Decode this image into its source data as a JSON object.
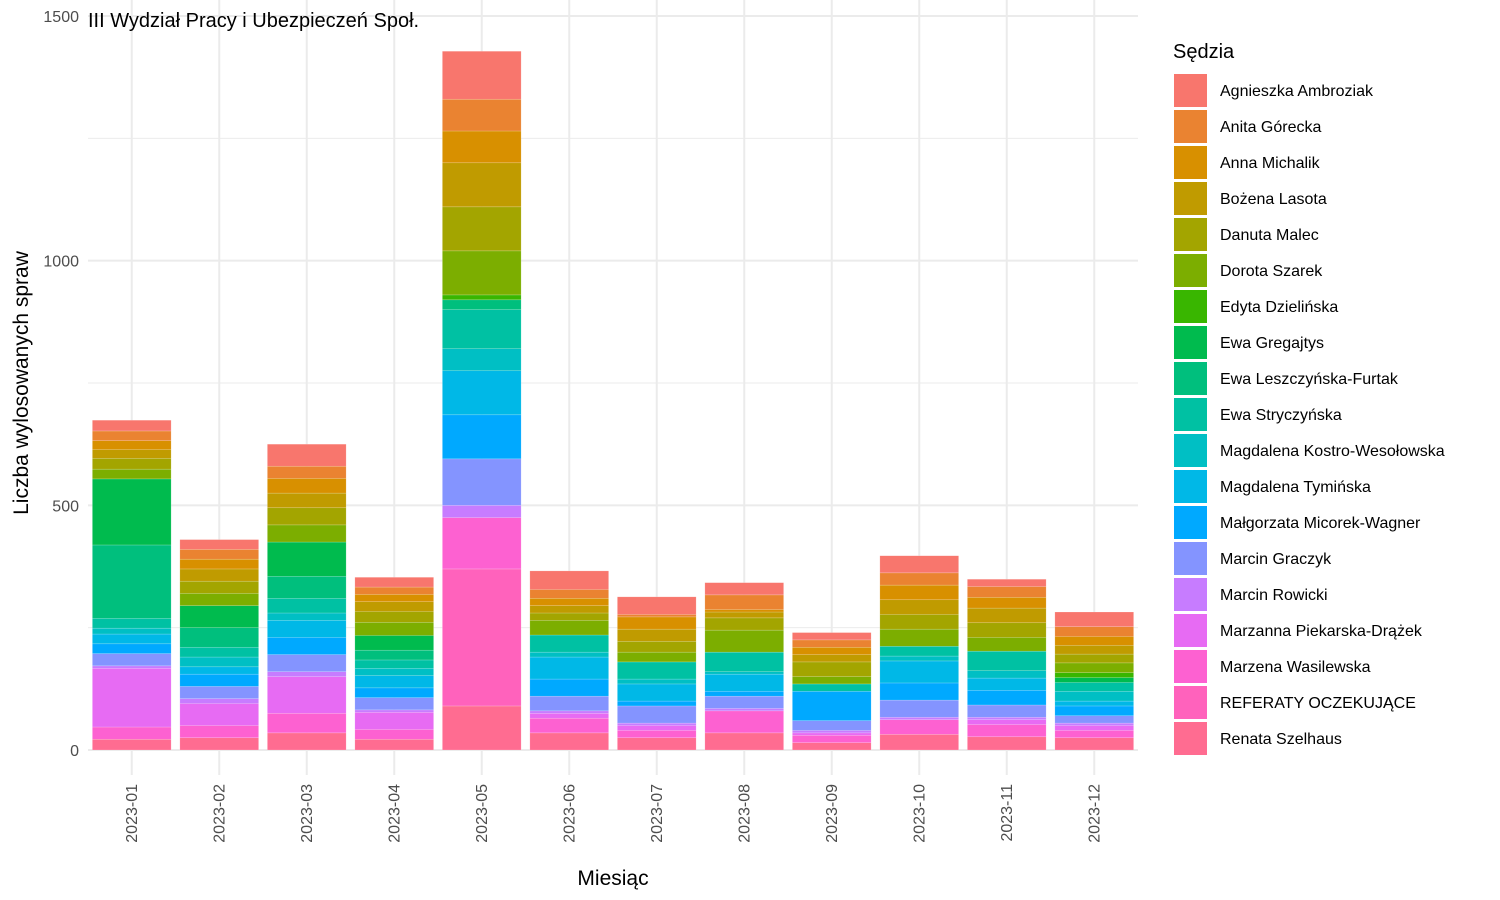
{
  "chart_data": {
    "type": "bar",
    "stacked": true,
    "title": "III Wydział Pracy i Ubezpieczeń Społ.",
    "xlabel": "Miesiąc",
    "ylabel": "Liczba wylosowanych spraw",
    "legend_title": "Sędzia",
    "legend_position": "right",
    "grid": true,
    "ylim": [
      -55,
      1500
    ],
    "yticks": [
      0,
      500,
      1000,
      1500
    ],
    "categories": [
      "2023-01",
      "2023-02",
      "2023-03",
      "2023-04",
      "2023-05",
      "2023-06",
      "2023-07",
      "2023-08",
      "2023-09",
      "2023-10",
      "2023-11",
      "2023-12"
    ],
    "series": [
      {
        "name": "Agnieszka Ambroziak",
        "color": "#F8766D",
        "values": [
          22,
          20,
          45,
          20,
          98,
          38,
          36,
          25,
          15,
          35,
          15,
          30
        ]
      },
      {
        "name": "Anita Górecka",
        "color": "#EA8331",
        "values": [
          20,
          20,
          25,
          15,
          65,
          18,
          5,
          30,
          15,
          25,
          22,
          20
        ]
      },
      {
        "name": "Anna Michalik",
        "color": "#D89000",
        "values": [
          18,
          20,
          30,
          15,
          65,
          15,
          25,
          5,
          15,
          30,
          22,
          18
        ]
      },
      {
        "name": "Bożena Lasota",
        "color": "#C09B00",
        "values": [
          18,
          25,
          30,
          20,
          90,
          15,
          25,
          12,
          15,
          30,
          30,
          18
        ]
      },
      {
        "name": "Danuta Malec",
        "color": "#A3A500",
        "values": [
          22,
          25,
          35,
          22,
          90,
          15,
          22,
          25,
          30,
          30,
          30,
          18
        ]
      },
      {
        "name": "Dorota Szarek",
        "color": "#7CAE00",
        "values": [
          20,
          25,
          35,
          27,
          90,
          30,
          20,
          45,
          15,
          35,
          28,
          20
        ]
      },
      {
        "name": "Edyta Dzielińska",
        "color": "#39B600",
        "values": [
          0,
          0,
          0,
          0,
          10,
          0,
          0,
          0,
          0,
          0,
          0,
          10
        ]
      },
      {
        "name": "Ewa Gregajtys",
        "color": "#00BB4E",
        "values": [
          135,
          45,
          70,
          30,
          0,
          0,
          0,
          0,
          0,
          0,
          0,
          10
        ]
      },
      {
        "name": "Ewa Leszczyńska-Furtak",
        "color": "#00BF7D",
        "values": [
          150,
          40,
          45,
          20,
          20,
          0,
          0,
          0,
          0,
          0,
          0,
          0
        ]
      },
      {
        "name": "Ewa Stryczyńska",
        "color": "#00C1A3",
        "values": [
          20,
          20,
          30,
          17,
          80,
          35,
          35,
          40,
          15,
          20,
          40,
          18
        ]
      },
      {
        "name": "Magdalena Kostro-Wesołowska",
        "color": "#00BFC4",
        "values": [
          12,
          20,
          15,
          15,
          45,
          10,
          10,
          5,
          0,
          10,
          15,
          20
        ]
      },
      {
        "name": "Magdalena Tymińska",
        "color": "#00B8E7",
        "values": [
          20,
          15,
          35,
          25,
          90,
          45,
          35,
          35,
          0,
          45,
          25,
          10
        ]
      },
      {
        "name": "Małgorzata Micorek-Wagner",
        "color": "#00A9FF",
        "values": [
          20,
          25,
          35,
          20,
          90,
          35,
          10,
          10,
          60,
          35,
          30,
          20
        ]
      },
      {
        "name": "Marcin Graczyk",
        "color": "#8494FF",
        "values": [
          25,
          25,
          35,
          25,
          95,
          30,
          35,
          25,
          20,
          35,
          25,
          15
        ]
      },
      {
        "name": "Marcin Rowicki",
        "color": "#C77CFF",
        "values": [
          5,
          10,
          10,
          5,
          25,
          5,
          5,
          5,
          5,
          5,
          5,
          5
        ]
      },
      {
        "name": "Marzanna Piekarska-Drążek",
        "color": "#E76BF3",
        "values": [
          120,
          45,
          75,
          35,
          0,
          10,
          10,
          0,
          5,
          0,
          10,
          10
        ]
      },
      {
        "name": "Marzena Wasilewska",
        "color": "#FD61D1",
        "values": [
          25,
          25,
          40,
          20,
          105,
          30,
          15,
          45,
          15,
          30,
          25,
          15
        ]
      },
      {
        "name": "REFERATY OCZEKUJĄCE",
        "color": "#FF62BC",
        "values": [
          0,
          0,
          0,
          0,
          280,
          0,
          0,
          0,
          0,
          0,
          0,
          0
        ]
      },
      {
        "name": "Renata Szelhaus",
        "color": "#FF6C91",
        "values": [
          22,
          25,
          35,
          22,
          90,
          35,
          25,
          35,
          15,
          32,
          27,
          25
        ]
      }
    ]
  }
}
